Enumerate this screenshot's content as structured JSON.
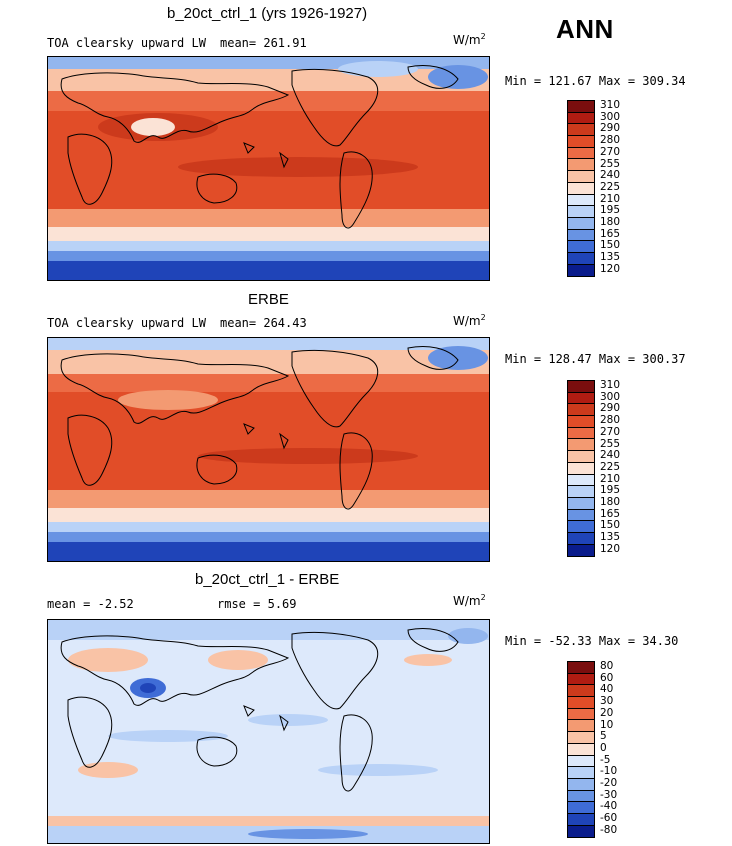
{
  "season": "ANN",
  "panels": [
    {
      "title": "b_20ct_ctrl_1 (yrs 1926-1927)",
      "left_label": "TOA clearsky upward LW",
      "mean_label": "mean=",
      "mean_value": "261.91",
      "units": "W/m",
      "units_sup": "2",
      "minmax": "Min = 121.67 Max = 309.34",
      "colorbar_labels": [
        "310",
        "300",
        "290",
        "280",
        "270",
        "255",
        "240",
        "225",
        "210",
        "195",
        "180",
        "165",
        "150",
        "135",
        "120"
      ]
    },
    {
      "title": "ERBE",
      "left_label": "TOA clearsky upward LW",
      "mean_label": "mean=",
      "mean_value": "264.43",
      "units": "W/m",
      "units_sup": "2",
      "minmax": "Min = 128.47 Max = 300.37",
      "colorbar_labels": [
        "310",
        "300",
        "290",
        "280",
        "270",
        "255",
        "240",
        "225",
        "210",
        "195",
        "180",
        "165",
        "150",
        "135",
        "120"
      ]
    },
    {
      "title": "b_20ct_ctrl_1 - ERBE",
      "mean_label": "mean =",
      "mean_value": "-2.52",
      "rmse_label": "rmse =",
      "rmse_value": "5.69",
      "units": "W/m",
      "units_sup": "2",
      "minmax": "Min = -52.33 Max =  34.30",
      "colorbar_labels": [
        "80",
        "60",
        "40",
        "30",
        "20",
        "10",
        "5",
        "0",
        "-5",
        "-10",
        "-20",
        "-30",
        "-40",
        "-60",
        "-80"
      ]
    }
  ],
  "colors": {
    "scale": [
      "#7a0e0e",
      "#b01c12",
      "#cc3a1c",
      "#e14d28",
      "#ec6b45",
      "#f39a72",
      "#f9c3a6",
      "#fbe3d6",
      "#dde9fb",
      "#b9d2f7",
      "#93b6ee",
      "#6893e3",
      "#3f6cd6",
      "#1f44b8",
      "#0a1c8c"
    ],
    "coastline": "#000000"
  }
}
